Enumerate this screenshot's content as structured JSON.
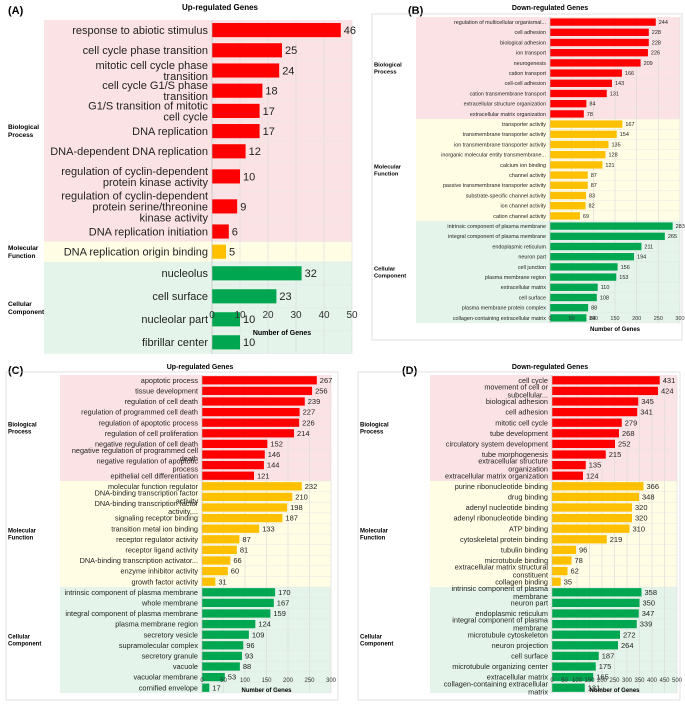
{
  "chart_data": [
    {
      "panel": "(A)",
      "type": "bar",
      "orientation": "horizontal",
      "title": "Up-regulated Genes",
      "xlabel": "Number of Genes",
      "xlim": [
        0,
        50
      ],
      "xticks": [
        0,
        10,
        20,
        30,
        40,
        50
      ],
      "groups": [
        {
          "name": "Biological Process",
          "color": "#ff0000",
          "bg": "#fbe3e5",
          "categories": [
            "response to abiotic stimulus",
            "cell cycle phase transition",
            "mitotic cell cycle phase transition",
            "cell cycle G1/S phase transition",
            "G1/S transition of mitotic cell cycle",
            "DNA replication",
            "DNA-dependent DNA replication",
            "regulation of cyclin-dependent protein kinase activity",
            "regulation of cyclin-dependent protein serine/threonine kinase activity",
            "DNA replication initiation"
          ],
          "values": [
            46,
            25,
            24,
            18,
            17,
            17,
            12,
            10,
            9,
            6
          ]
        },
        {
          "name": "Molecular Function",
          "color": "#ffc000",
          "bg": "#fffde4",
          "categories": [
            "DNA replication origin binding"
          ],
          "values": [
            5
          ]
        },
        {
          "name": "Cellular Component",
          "color": "#00a650",
          "bg": "#e4f4ea",
          "categories": [
            "nucleolus",
            "cell surface",
            "nucleolar part",
            "fibrillar center"
          ],
          "values": [
            32,
            23,
            10,
            10
          ]
        }
      ]
    },
    {
      "panel": "(B)",
      "type": "bar",
      "orientation": "horizontal",
      "title": "Down-regulated Genes",
      "xlabel": "Number of Genes",
      "xlim": [
        0,
        300
      ],
      "xticks": [
        0,
        50,
        100,
        150,
        200,
        250,
        300
      ],
      "groups": [
        {
          "name": "Biological Process",
          "color": "#ff0000",
          "bg": "#fbe3e5",
          "categories": [
            "regulation of multicellular organismal...",
            "cell adhesion",
            "biological adhesion",
            "ion transport",
            "neurogenesis",
            "cation transport",
            "cell-cell adhesion",
            "cation transmembrane transport",
            "extracellular structure organization",
            "extracellular matrix organization"
          ],
          "values": [
            244,
            228,
            228,
            226,
            209,
            166,
            143,
            131,
            84,
            78
          ]
        },
        {
          "name": "Molecular Function",
          "color": "#ffc000",
          "bg": "#fffde4",
          "categories": [
            "transporter activity",
            "transmembrane transporter activity",
            "ion transmembrane transporter activity",
            "inorganic molecular entity transmembrane...",
            "calcium ion binding",
            "channel activity",
            "passive transmembrane transporter activity",
            "substrate-specific channel activity",
            "ion channel activity",
            "cation channel activity"
          ],
          "values": [
            167,
            154,
            135,
            128,
            121,
            87,
            87,
            83,
            82,
            69
          ]
        },
        {
          "name": "Cellular Component",
          "color": "#00a650",
          "bg": "#e4f4ea",
          "categories": [
            "intrinsic component of plasma membrane",
            "integral component of plasma membrane",
            "endoplasmic reticulum",
            "neuron part",
            "cell junction",
            "plasma membrane region",
            "extracellular matrix",
            "cell surface",
            "plasma membrane protein complex",
            "collagen-containing extracellular matrix"
          ],
          "values": [
            283,
            265,
            211,
            194,
            156,
            153,
            110,
            108,
            88,
            84
          ]
        }
      ]
    },
    {
      "panel": "(C)",
      "type": "bar",
      "orientation": "horizontal",
      "title": "Up-regulated Genes",
      "xlabel": "Number of Genes",
      "xlim": [
        0,
        300
      ],
      "xticks": [
        0,
        50,
        100,
        150,
        200,
        250,
        300
      ],
      "groups": [
        {
          "name": "Biological Process",
          "color": "#ff0000",
          "bg": "#fbe3e5",
          "categories": [
            "apoptotic process",
            "tissue development",
            "regulation of cell death",
            "regulation of programmed cell death",
            "regulation of apoptotic process",
            "regulation of cell proliferation",
            "negative regulation of cell death",
            "negative regulation of programmed cell death",
            "negative regulation of apoptotic process",
            "epithelial cell differentiation"
          ],
          "values": [
            267,
            256,
            239,
            227,
            226,
            214,
            152,
            146,
            144,
            121
          ]
        },
        {
          "name": "Molecular Function",
          "color": "#ffc000",
          "bg": "#fffde4",
          "categories": [
            "molecular function regulator",
            "DNA-binding transcription factor activity",
            "DNA-binding transcription factor activity,...",
            "signaling receptor binding",
            "transition metal ion binding",
            "receptor regulator activity",
            "receptor ligand activity",
            "DNA-binding transcription activator...",
            "enzyme inhibitor activity",
            "growth factor activity"
          ],
          "values": [
            232,
            210,
            198,
            187,
            133,
            87,
            81,
            66,
            60,
            31
          ]
        },
        {
          "name": "Cellular Component",
          "color": "#00a650",
          "bg": "#e4f4ea",
          "categories": [
            "intrinsic component of plasma membrane",
            "whole membrane",
            "integral component of plasma membrane",
            "plasma membrane region",
            "secretory vesicle",
            "supramolecular complex",
            "secretory granule",
            "vacuole",
            "vacuolar membrane",
            "cornified envelope"
          ],
          "values": [
            170,
            167,
            159,
            124,
            109,
            96,
            93,
            88,
            53,
            17
          ]
        }
      ]
    },
    {
      "panel": "(D)",
      "type": "bar",
      "orientation": "horizontal",
      "title": "Down-regulated Genes",
      "xlabel": "Number of Genes",
      "xlim": [
        0,
        500
      ],
      "xticks": [
        0,
        50,
        100,
        150,
        200,
        250,
        300,
        350,
        400,
        450,
        500
      ],
      "groups": [
        {
          "name": "Biological Process",
          "color": "#ff0000",
          "bg": "#fbe3e5",
          "categories": [
            "cell cycle",
            "movement of cell or subcellular...",
            "biological adhesion",
            "cell adhesion",
            "mitotic cell cycle",
            "tube development",
            "circulatory system development",
            "tube morphogenesis",
            "extracellular structure organization",
            "extracellular matrix organization"
          ],
          "values": [
            431,
            424,
            345,
            341,
            279,
            268,
            252,
            215,
            135,
            124
          ]
        },
        {
          "name": "Molecular Function",
          "color": "#ffc000",
          "bg": "#fffde4",
          "categories": [
            "purine ribonucleotide binding",
            "drug binding",
            "adenyl nucleotide binding",
            "adenyl ribonucleotide binding",
            "ATP binding",
            "cytoskeletal protein binding",
            "tubulin binding",
            "microtubule binding",
            "extracellular matrix structural constituent",
            "collagen binding"
          ],
          "values": [
            366,
            348,
            320,
            320,
            310,
            219,
            96,
            78,
            62,
            35
          ]
        },
        {
          "name": "Cellular Component",
          "color": "#00a650",
          "bg": "#e4f4ea",
          "categories": [
            "intrinsic component of plasma membrane",
            "neuron part",
            "endoplasmic reticulum",
            "integral component of plasma membrane",
            "microtubule cytoskeleton",
            "neuron projection",
            "cell surface",
            "microtubule organizing center",
            "extracellular matrix",
            "collagen-containing extracellular matrix"
          ],
          "values": [
            358,
            350,
            347,
            339,
            272,
            264,
            187,
            175,
            165,
            131
          ]
        }
      ]
    }
  ]
}
